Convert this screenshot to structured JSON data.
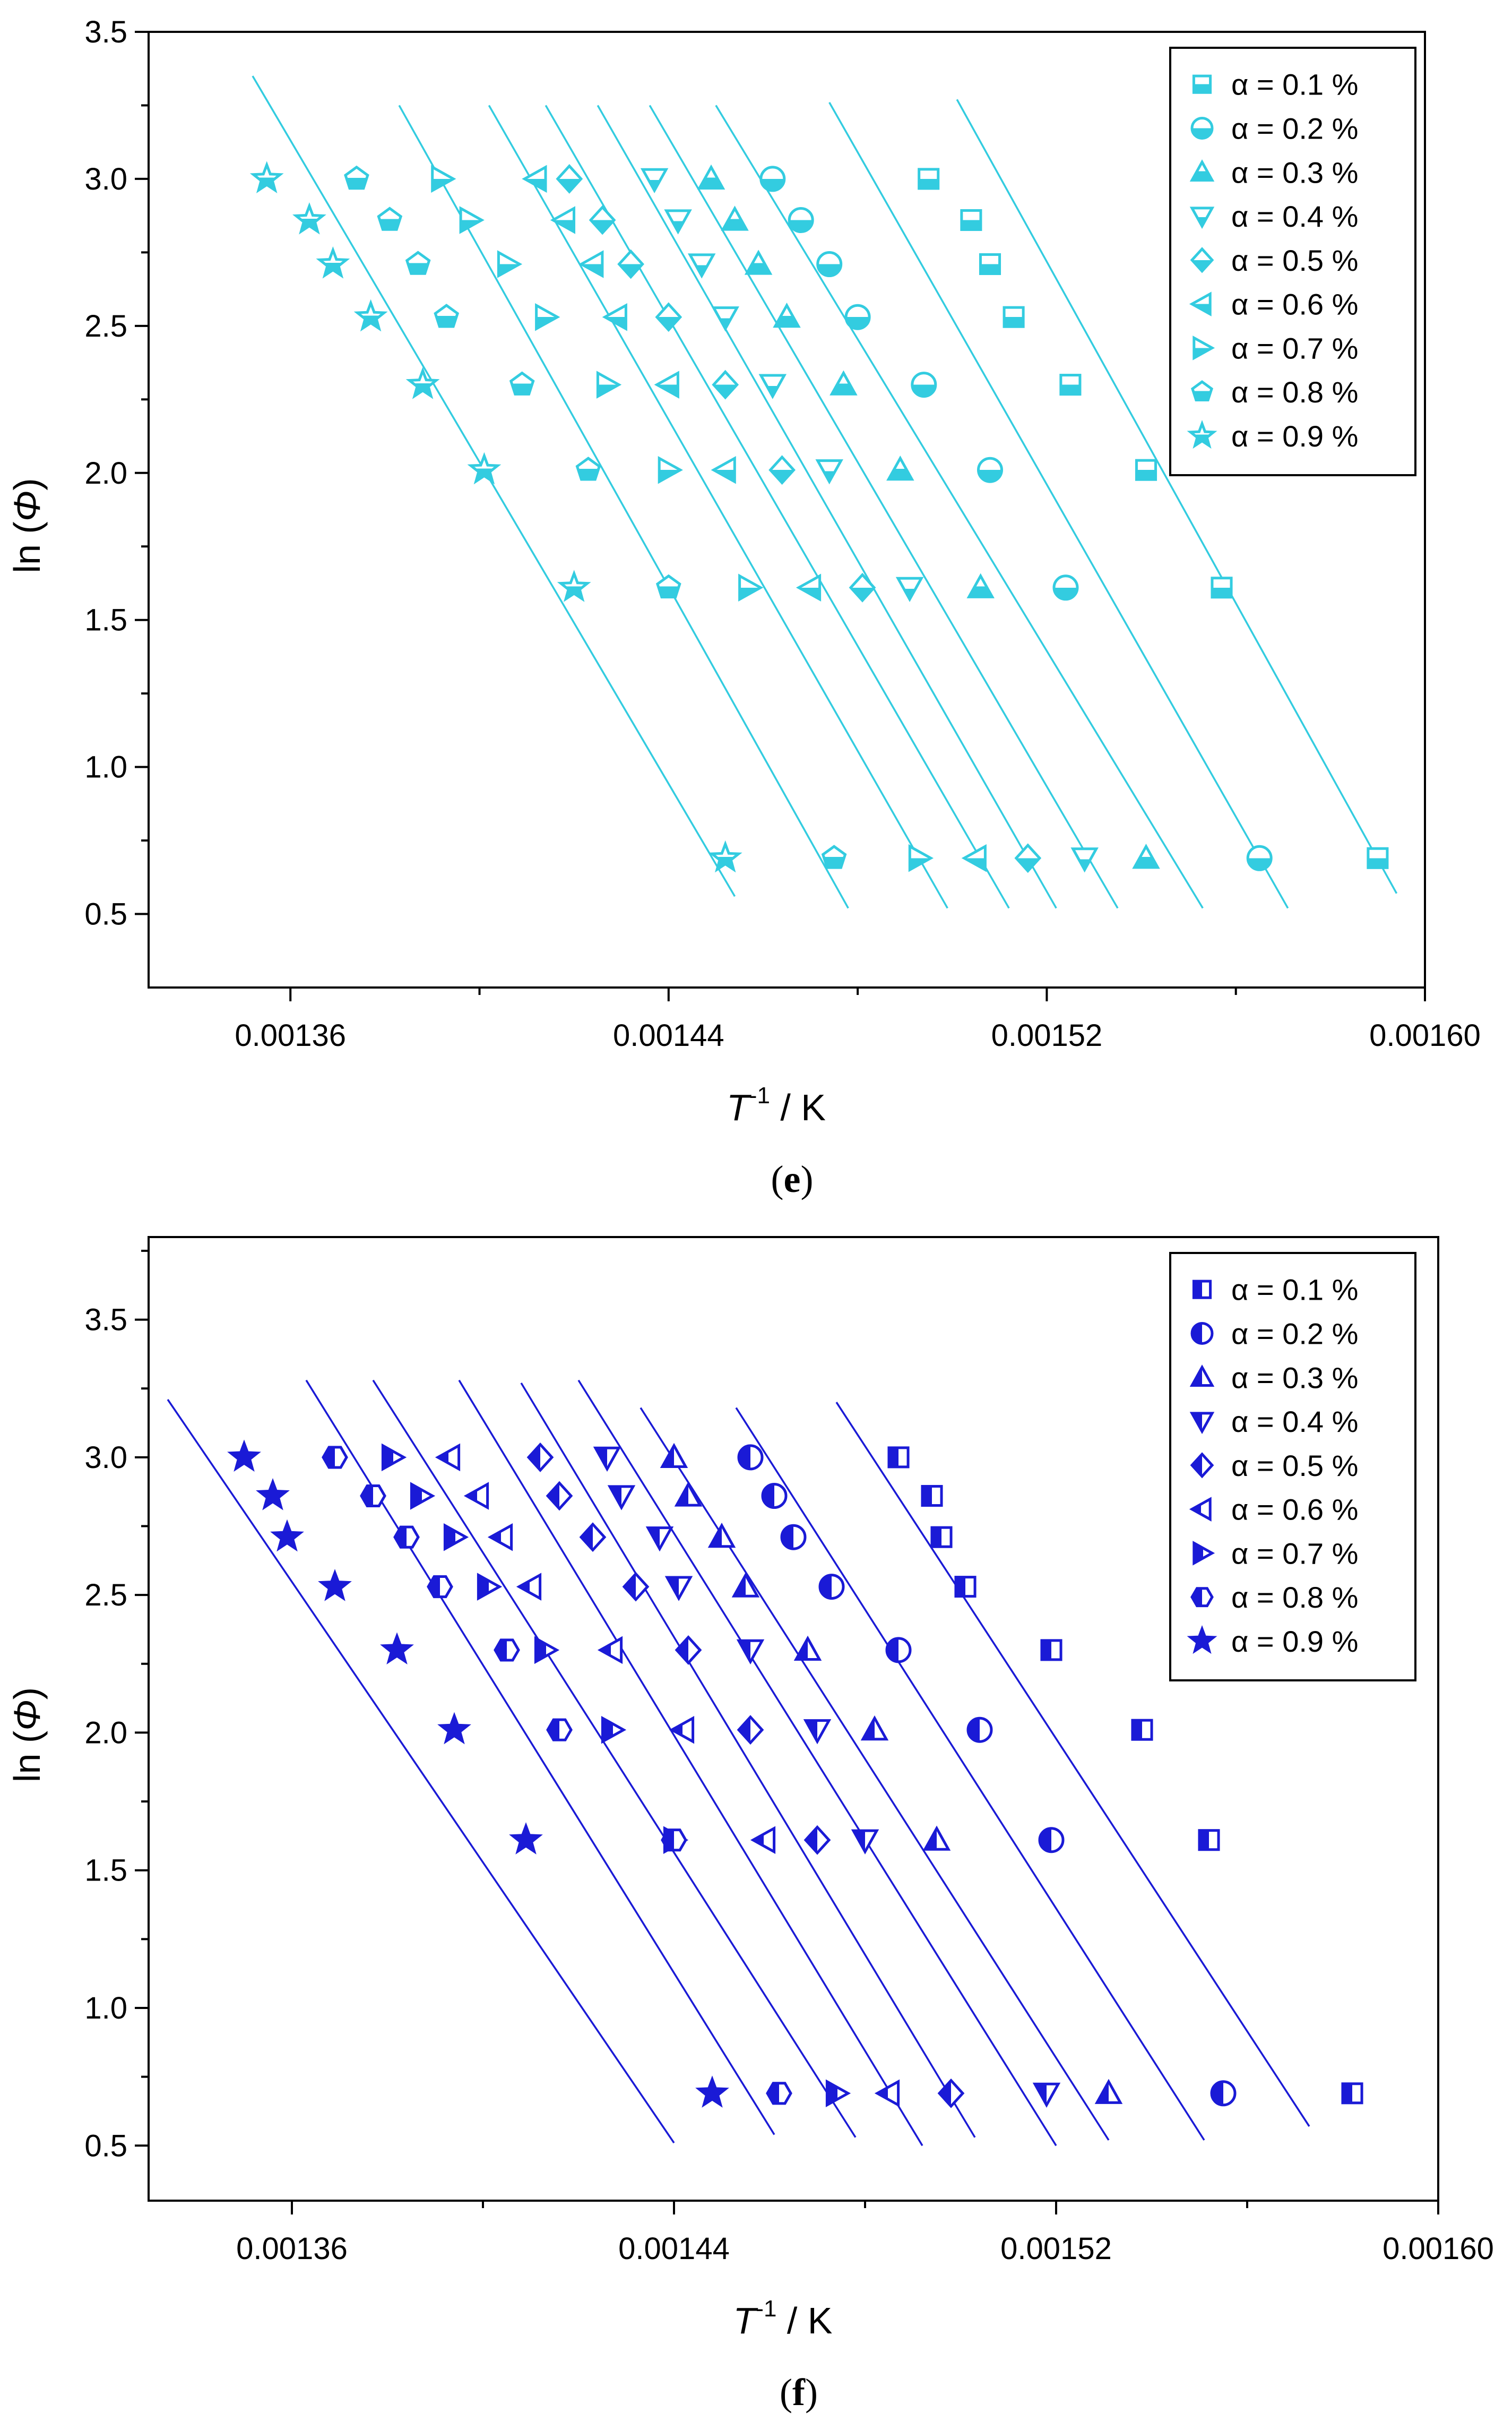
{
  "chart_data": [
    {
      "type": "scatter",
      "panel": "e",
      "caption": "(e)",
      "caption_parts": {
        "open": "(",
        "letter": "e",
        "close": ")"
      },
      "color": "#33cce0",
      "xlabel": {
        "main": "T",
        "sup": "-1",
        "rest": " / K"
      },
      "ylabel": {
        "pre": "ln (",
        "sym": "Φ",
        "post": ")"
      },
      "xlim": [
        0.00133,
        0.0016
      ],
      "ylim": [
        0.25,
        3.5
      ],
      "xticks": [
        0.00136,
        0.00144,
        0.00152,
        0.0016
      ],
      "xtick_labels": [
        "0.00136",
        "0.00144",
        "0.00152",
        "0.00160"
      ],
      "yticks": [
        0.5,
        1.0,
        1.5,
        2.0,
        2.5,
        3.0,
        3.5
      ],
      "ytick_labels": [
        "0.5",
        "1.0",
        "1.5",
        "2.0",
        "2.5",
        "3.0",
        "3.5"
      ],
      "legend_position": "top-right",
      "series": [
        {
          "name": "α = 0.1 %",
          "marker": "square",
          "x": [
            0.001495,
            0.001504,
            0.001508,
            0.001513,
            0.001525,
            0.001541,
            0.001557,
            0.00159
          ],
          "y": [
            3.0,
            2.86,
            2.71,
            2.53,
            2.3,
            2.01,
            1.61,
            0.69
          ],
          "fit": [
            [
              0.001501,
              3.27
            ],
            [
              0.001594,
              0.57
            ]
          ]
        },
        {
          "name": "α = 0.2 %",
          "marker": "circle",
          "x": [
            0.001462,
            0.001468,
            0.001474,
            0.00148,
            0.001494,
            0.001508,
            0.001524,
            0.001565
          ],
          "y": [
            3.0,
            2.86,
            2.71,
            2.53,
            2.3,
            2.01,
            1.61,
            0.69
          ],
          "fit": [
            [
              0.001474,
              3.26
            ],
            [
              0.001571,
              0.52
            ]
          ]
        },
        {
          "name": "α = 0.3 %",
          "marker": "triangle-up",
          "x": [
            0.001449,
            0.001454,
            0.001459,
            0.001465,
            0.001477,
            0.001489,
            0.001506,
            0.001541
          ],
          "y": [
            3.0,
            2.86,
            2.71,
            2.53,
            2.3,
            2.01,
            1.61,
            0.69
          ],
          "fit": [
            [
              0.00145,
              3.25
            ],
            [
              0.001553,
              0.52
            ]
          ]
        },
        {
          "name": "α = 0.4 %",
          "marker": "triangle-down",
          "x": [
            0.001437,
            0.001442,
            0.001447,
            0.001452,
            0.001462,
            0.001474,
            0.001491,
            0.001528
          ],
          "y": [
            3.0,
            2.86,
            2.71,
            2.53,
            2.3,
            2.01,
            1.61,
            0.69
          ],
          "fit": [
            [
              0.001436,
              3.25
            ],
            [
              0.001535,
              0.52
            ]
          ]
        },
        {
          "name": "α = 0.5 %",
          "marker": "diamond",
          "x": [
            0.001419,
            0.001426,
            0.001432,
            0.00144,
            0.001452,
            0.001464,
            0.001481,
            0.001516
          ],
          "y": [
            3.0,
            2.86,
            2.71,
            2.53,
            2.3,
            2.01,
            1.61,
            0.69
          ],
          "fit": [
            [
              0.001425,
              3.25
            ],
            [
              0.001522,
              0.52
            ]
          ]
        },
        {
          "name": "α = 0.6 %",
          "marker": "triangle-left",
          "x": [
            0.001412,
            0.001418,
            0.001424,
            0.001429,
            0.00144,
            0.001452,
            0.00147,
            0.001505
          ],
          "y": [
            3.0,
            2.86,
            2.71,
            2.53,
            2.3,
            2.01,
            1.61,
            0.69
          ],
          "fit": [
            [
              0.001414,
              3.25
            ],
            [
              0.001512,
              0.52
            ]
          ]
        },
        {
          "name": "α = 0.7 %",
          "marker": "triangle-right",
          "x": [
            0.001392,
            0.001398,
            0.001406,
            0.001414,
            0.001427,
            0.00144,
            0.001457,
            0.001493
          ],
          "y": [
            3.0,
            2.86,
            2.71,
            2.53,
            2.3,
            2.01,
            1.61,
            0.69
          ],
          "fit": [
            [
              0.001402,
              3.25
            ],
            [
              0.001499,
              0.52
            ]
          ]
        },
        {
          "name": "α = 0.8 %",
          "marker": "pentagon",
          "x": [
            0.001374,
            0.001381,
            0.001387,
            0.001393,
            0.001409,
            0.001423,
            0.00144,
            0.001475
          ],
          "y": [
            3.0,
            2.86,
            2.71,
            2.53,
            2.3,
            2.01,
            1.61,
            0.69
          ],
          "fit": [
            [
              0.001383,
              3.25
            ],
            [
              0.001478,
              0.52
            ]
          ]
        },
        {
          "name": "α = 0.9 %",
          "marker": "star",
          "x": [
            0.001355,
            0.001364,
            0.001369,
            0.001377,
            0.001388,
            0.001401,
            0.00142,
            0.001452
          ],
          "y": [
            3.0,
            2.86,
            2.71,
            2.53,
            2.3,
            2.01,
            1.61,
            0.69
          ],
          "fit": [
            [
              0.001352,
              3.35
            ],
            [
              0.001454,
              0.56
            ]
          ]
        }
      ]
    },
    {
      "type": "scatter",
      "panel": "f",
      "caption": "(f)",
      "caption_parts": {
        "open": "(",
        "letter": "f",
        "close": ")"
      },
      "color": "#1a1ad6",
      "xlabel": {
        "main": "T",
        "sup": "-1",
        "rest": " / K"
      },
      "ylabel": {
        "pre": "ln (",
        "sym": "Φ",
        "post": ")"
      },
      "xlim": [
        0.00133,
        0.0016
      ],
      "ylim": [
        0.3,
        3.8
      ],
      "xticks": [
        0.00136,
        0.00144,
        0.00152,
        0.0016
      ],
      "xtick_labels": [
        "0.00136",
        "0.00144",
        "0.00152",
        "0.00160"
      ],
      "yticks": [
        0.5,
        1.0,
        1.5,
        2.0,
        2.5,
        3.0,
        3.5
      ],
      "ytick_labels": [
        "0.5",
        "1.0",
        "1.5",
        "2.0",
        "2.5",
        "3.0",
        "3.5"
      ],
      "legend_position": "top-right",
      "series": [
        {
          "name": "α = 0.1 %",
          "marker": "square",
          "x": [
            0.001487,
            0.001494,
            0.001496,
            0.001501,
            0.001519,
            0.001538,
            0.001552,
            0.001582
          ],
          "y": [
            3.0,
            2.86,
            2.71,
            2.53,
            2.3,
            2.01,
            1.61,
            0.69
          ],
          "fit": [
            [
              0.001474,
              3.2
            ],
            [
              0.001573,
              0.57
            ]
          ]
        },
        {
          "name": "α = 0.2 %",
          "marker": "circle",
          "x": [
            0.001456,
            0.001461,
            0.001465,
            0.001473,
            0.001487,
            0.001504,
            0.001519,
            0.001555
          ],
          "y": [
            3.0,
            2.86,
            2.71,
            2.53,
            2.3,
            2.01,
            1.61,
            0.69
          ],
          "fit": [
            [
              0.001453,
              3.18
            ],
            [
              0.001551,
              0.52
            ]
          ]
        },
        {
          "name": "α = 0.3 %",
          "marker": "triangle-up",
          "x": [
            0.00144,
            0.001443,
            0.00145,
            0.001455,
            0.001468,
            0.001482,
            0.001495,
            0.001531
          ],
          "y": [
            3.0,
            2.86,
            2.71,
            2.53,
            2.3,
            2.01,
            1.61,
            0.69
          ],
          "fit": [
            [
              0.001433,
              3.18
            ],
            [
              0.001531,
              0.52
            ]
          ]
        },
        {
          "name": "α = 0.4 %",
          "marker": "triangle-down",
          "x": [
            0.001426,
            0.001429,
            0.001437,
            0.001441,
            0.001456,
            0.00147,
            0.00148,
            0.001518
          ],
          "y": [
            3.0,
            2.86,
            2.71,
            2.53,
            2.3,
            2.01,
            1.61,
            0.69
          ],
          "fit": [
            [
              0.00142,
              3.28
            ],
            [
              0.00152,
              0.5
            ]
          ]
        },
        {
          "name": "α = 0.5 %",
          "marker": "diamond",
          "x": [
            0.001412,
            0.001416,
            0.001423,
            0.001432,
            0.001443,
            0.001456,
            0.00147,
            0.001498
          ],
          "y": [
            3.0,
            2.86,
            2.71,
            2.53,
            2.3,
            2.01,
            1.61,
            0.69
          ],
          "fit": [
            [
              0.001408,
              3.27
            ],
            [
              0.001503,
              0.53
            ]
          ]
        },
        {
          "name": "α = 0.6 %",
          "marker": "triangle-left",
          "x": [
            0.001393,
            0.001399,
            0.001404,
            0.00141,
            0.001427,
            0.001442,
            0.001459,
            0.001485
          ],
          "y": [
            3.0,
            2.86,
            2.71,
            2.53,
            2.3,
            2.01,
            1.61,
            0.69
          ],
          "fit": [
            [
              0.001395,
              3.28
            ],
            [
              0.001492,
              0.5
            ]
          ]
        },
        {
          "name": "α = 0.7 %",
          "marker": "triangle-right",
          "x": [
            0.001381,
            0.001387,
            0.001394,
            0.001401,
            0.001413,
            0.001427,
            0.00144,
            0.001474
          ],
          "y": [
            3.0,
            2.86,
            2.71,
            2.53,
            2.3,
            2.01,
            1.61,
            0.69
          ],
          "fit": [
            [
              0.001377,
              3.28
            ],
            [
              0.001478,
              0.53
            ]
          ]
        },
        {
          "name": "α = 0.8 %",
          "marker": "hexagon",
          "x": [
            0.001369,
            0.001377,
            0.001384,
            0.001391,
            0.001405,
            0.001416,
            0.00144,
            0.001462
          ],
          "y": [
            3.0,
            2.86,
            2.71,
            2.53,
            2.3,
            2.01,
            1.61,
            0.69
          ],
          "fit": [
            [
              0.001363,
              3.28
            ],
            [
              0.001461,
              0.54
            ]
          ]
        },
        {
          "name": "α = 0.9 %",
          "marker": "star",
          "x": [
            0.00135,
            0.001356,
            0.001359,
            0.001369,
            0.001382,
            0.001394,
            0.001409,
            0.001448
          ],
          "y": [
            3.0,
            2.86,
            2.71,
            2.53,
            2.3,
            2.01,
            1.61,
            0.69
          ],
          "fit": [
            [
              0.001334,
              3.21
            ],
            [
              0.00144,
              0.51
            ]
          ]
        }
      ]
    }
  ]
}
